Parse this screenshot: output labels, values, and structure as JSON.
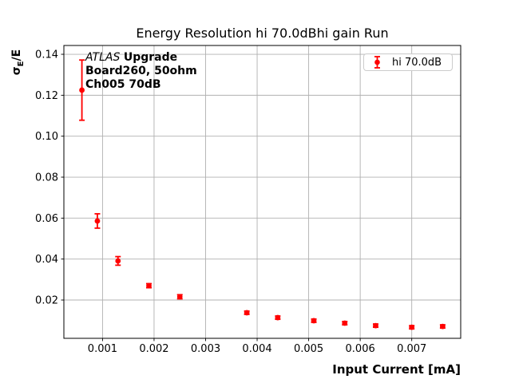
{
  "chart_data": {
    "type": "scatter",
    "title": "Energy Resolution hi 70.0dBhi gain Run",
    "xlabel": "Input Current [mA]",
    "ylabel": "σE/E",
    "ylabel_parts": {
      "sigma": "σ",
      "sub": "E",
      "rest": "/E"
    },
    "xlim": [
      0.00025,
      0.00795
    ],
    "ylim": [
      0.0013,
      0.1443
    ],
    "grid": true,
    "legend_position": "upper right",
    "annotation": {
      "line1_italic": "ATLAS",
      "line1_bold": "Upgrade",
      "line2": "Board260, 50ohm",
      "line3": "Ch005 70dB"
    },
    "xticks": {
      "values": [
        0.001,
        0.002,
        0.003,
        0.004,
        0.005,
        0.006,
        0.007
      ],
      "labels": [
        "0.001",
        "0.002",
        "0.003",
        "0.004",
        "0.005",
        "0.006",
        "0.007"
      ]
    },
    "yticks": {
      "values": [
        0.02,
        0.04,
        0.06,
        0.08,
        0.1,
        0.12,
        0.14
      ],
      "labels": [
        "0.02",
        "0.04",
        "0.06",
        "0.08",
        "0.10",
        "0.12",
        "0.14"
      ]
    },
    "series": [
      {
        "name": "hi 70.0dB",
        "color": "#ff0000",
        "marker": "circle",
        "x": [
          0.0006,
          0.0009,
          0.0013,
          0.0019,
          0.0025,
          0.0038,
          0.0044,
          0.0051,
          0.0057,
          0.0063,
          0.007,
          0.0076
        ],
        "y": [
          0.1225,
          0.0586,
          0.0391,
          0.027,
          0.0216,
          0.0138,
          0.0114,
          0.0099,
          0.0087,
          0.0075,
          0.0067,
          0.0071
        ],
        "yerr": [
          0.0147,
          0.0035,
          0.0021,
          0.001,
          0.001,
          0.0008,
          0.0008,
          0.0008,
          0.0008,
          0.0008,
          0.0008,
          0.0008
        ]
      }
    ],
    "colors": {
      "grid": "#b0b0b0",
      "spine": "#000000",
      "series": "#ff0000",
      "legend_border": "#cccccc"
    }
  }
}
